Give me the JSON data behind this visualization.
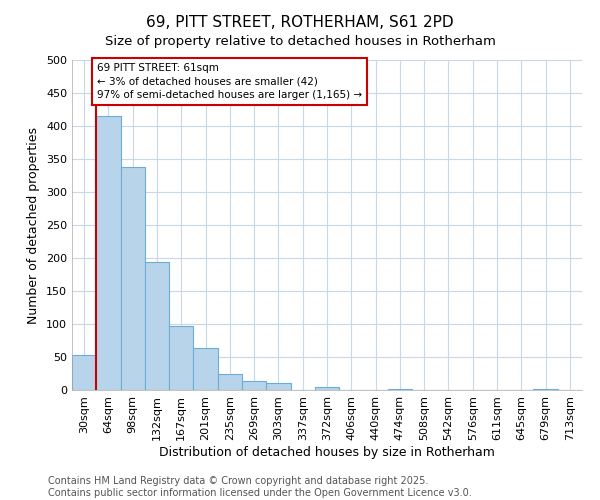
{
  "title": "69, PITT STREET, ROTHERHAM, S61 2PD",
  "subtitle": "Size of property relative to detached houses in Rotherham",
  "xlabel": "Distribution of detached houses by size in Rotherham",
  "ylabel": "Number of detached properties",
  "categories": [
    "30sqm",
    "64sqm",
    "98sqm",
    "132sqm",
    "167sqm",
    "201sqm",
    "235sqm",
    "269sqm",
    "303sqm",
    "337sqm",
    "372sqm",
    "406sqm",
    "440sqm",
    "474sqm",
    "508sqm",
    "542sqm",
    "576sqm",
    "611sqm",
    "645sqm",
    "679sqm",
    "713sqm"
  ],
  "values": [
    53,
    415,
    338,
    194,
    97,
    63,
    24,
    14,
    10,
    0,
    5,
    0,
    0,
    2,
    0,
    0,
    0,
    0,
    0,
    2,
    0
  ],
  "bar_color": "#b8d4eb",
  "bar_edge_color": "#6aaed6",
  "vline_color": "#cc0000",
  "vline_x": 0.575,
  "annotation_text": "69 PITT STREET: 61sqm\n← 3% of detached houses are smaller (42)\n97% of semi-detached houses are larger (1,165) →",
  "annotation_box_facecolor": "#ffffff",
  "annotation_box_edgecolor": "#cc0000",
  "ylim": [
    0,
    500
  ],
  "yticks": [
    0,
    50,
    100,
    150,
    200,
    250,
    300,
    350,
    400,
    450,
    500
  ],
  "background_color": "#ffffff",
  "plot_background_color": "#ffffff",
  "grid_color": "#c8d8e8",
  "footer_line1": "Contains HM Land Registry data © Crown copyright and database right 2025.",
  "footer_line2": "Contains public sector information licensed under the Open Government Licence v3.0.",
  "title_fontsize": 11,
  "subtitle_fontsize": 9.5,
  "label_fontsize": 9,
  "tick_fontsize": 8,
  "annotation_fontsize": 7.5,
  "footer_fontsize": 7
}
